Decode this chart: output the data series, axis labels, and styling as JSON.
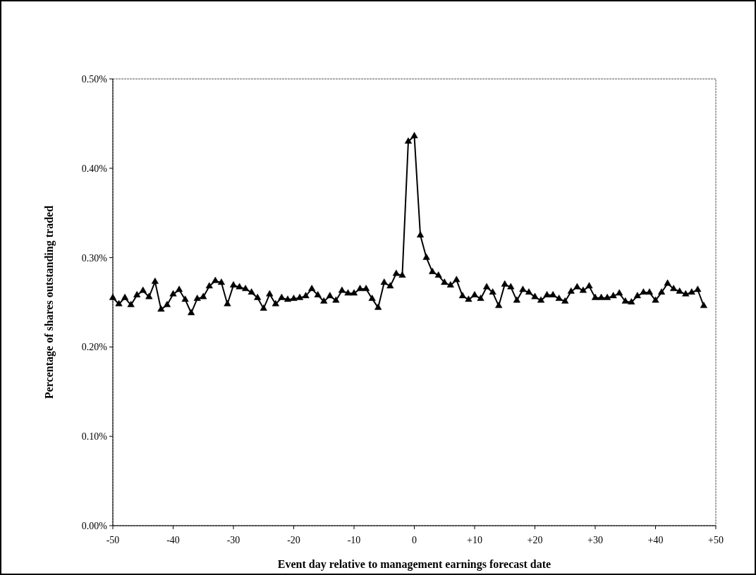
{
  "chart_data": {
    "type": "line",
    "xlabel": "Event day relative to management earnings forecast date",
    "ylabel": "Percentage of shares outstanding traded",
    "x": [
      -50,
      -49,
      -48,
      -47,
      -46,
      -45,
      -44,
      -43,
      -42,
      -41,
      -40,
      -39,
      -38,
      -37,
      -36,
      -35,
      -34,
      -33,
      -32,
      -31,
      -30,
      -29,
      -28,
      -27,
      -26,
      -25,
      -24,
      -23,
      -22,
      -21,
      -20,
      -19,
      -18,
      -17,
      -16,
      -15,
      -14,
      -13,
      -12,
      -11,
      -10,
      -9,
      -8,
      -7,
      -6,
      -5,
      -4,
      -3,
      -2,
      -1,
      0,
      1,
      2,
      3,
      4,
      5,
      6,
      7,
      8,
      9,
      10,
      11,
      12,
      13,
      14,
      15,
      16,
      17,
      18,
      19,
      20,
      21,
      22,
      23,
      24,
      25,
      26,
      27,
      28,
      29,
      30,
      31,
      32,
      33,
      34,
      35,
      36,
      37,
      38,
      39,
      40,
      41,
      42,
      43,
      44,
      45,
      46,
      47,
      48
    ],
    "series": [
      {
        "color": "#000000",
        "values": [
          0.255,
          0.248,
          0.255,
          0.247,
          0.258,
          0.263,
          0.256,
          0.273,
          0.242,
          0.247,
          0.259,
          0.264,
          0.253,
          0.238,
          0.254,
          0.256,
          0.268,
          0.274,
          0.272,
          0.248,
          0.269,
          0.267,
          0.265,
          0.261,
          0.255,
          0.243,
          0.259,
          0.248,
          0.255,
          0.253,
          0.254,
          0.255,
          0.257,
          0.265,
          0.258,
          0.251,
          0.257,
          0.252,
          0.263,
          0.26,
          0.26,
          0.265,
          0.265,
          0.254,
          0.244,
          0.272,
          0.268,
          0.282,
          0.28,
          0.43,
          0.436,
          0.325,
          0.3,
          0.284,
          0.28,
          0.272,
          0.269,
          0.275,
          0.257,
          0.253,
          0.258,
          0.254,
          0.267,
          0.261,
          0.246,
          0.27,
          0.267,
          0.252,
          0.264,
          0.261,
          0.256,
          0.252,
          0.258,
          0.258,
          0.254,
          0.251,
          0.262,
          0.267,
          0.263,
          0.268,
          0.255,
          0.255,
          0.255,
          0.257,
          0.26,
          0.251,
          0.25,
          0.257,
          0.261,
          0.261,
          0.252,
          0.261,
          0.271,
          0.265,
          0.262,
          0.259,
          0.261,
          0.264,
          0.246
        ]
      }
    ],
    "xlim": [
      -50,
      50
    ],
    "xticks": [
      {
        "value": -50,
        "label": "-50"
      },
      {
        "value": -40,
        "label": "-40"
      },
      {
        "value": -30,
        "label": "-30"
      },
      {
        "value": -20,
        "label": "-20"
      },
      {
        "value": -10,
        "label": "-10"
      },
      {
        "value": 0,
        "label": "0"
      },
      {
        "value": 10,
        "label": "+10"
      },
      {
        "value": 20,
        "label": "+20"
      },
      {
        "value": 30,
        "label": "+30"
      },
      {
        "value": 40,
        "label": "+40"
      },
      {
        "value": 50,
        "label": "+50"
      }
    ],
    "ylim": [
      0,
      0.5
    ],
    "yticks": [
      {
        "value": 0,
        "label": "0.00%"
      },
      {
        "value": 0.1,
        "label": "0.10%"
      },
      {
        "value": 0.2,
        "label": "0.20%"
      },
      {
        "value": 0.3,
        "label": "0.30%"
      },
      {
        "value": 0.4,
        "label": "0.40%"
      },
      {
        "value": 0.5,
        "label": "0.50%"
      }
    ],
    "grid": false,
    "marker": "triangle",
    "line_style": "solid"
  }
}
